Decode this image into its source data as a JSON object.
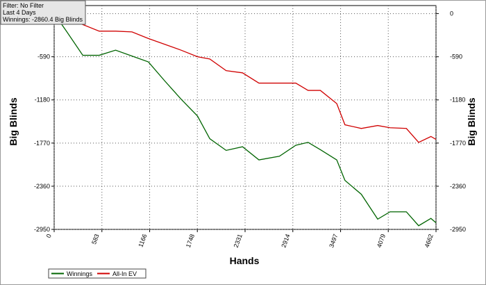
{
  "chart_data": {
    "type": "line",
    "info": [
      "Filter: No Filter",
      "Last  4 Days",
      "Winnings: -2860.4 Big Blinds"
    ],
    "y_label": "Big Blinds",
    "x_label": "Hands",
    "x": [
      0,
      150,
      350,
      550,
      750,
      950,
      1150,
      1350,
      1550,
      1750,
      1900,
      2100,
      2300,
      2500,
      2750,
      2950,
      3100,
      3250,
      3450,
      3550,
      3750,
      3950,
      4100,
      4300,
      4450,
      4600,
      4662
    ],
    "series": [
      {
        "name": "Winnings",
        "color": "#006400",
        "values": [
          0,
          -240,
          -570,
          -570,
          -500,
          -580,
          -660,
          -920,
          -1170,
          -1400,
          -1710,
          -1870,
          -1820,
          -2000,
          -1950,
          -1800,
          -1760,
          -1860,
          -2000,
          -2280,
          -2470,
          -2810,
          -2710,
          -2710,
          -2900,
          -2800,
          -2860
        ]
      },
      {
        "name": "All-In EV",
        "color": "#d00000",
        "values": [
          0,
          -60,
          -150,
          -240,
          -240,
          -250,
          -340,
          -420,
          -500,
          -590,
          -620,
          -780,
          -810,
          -950,
          -950,
          -950,
          -1050,
          -1050,
          -1230,
          -1520,
          -1570,
          -1530,
          -1560,
          -1570,
          -1760,
          -1680,
          -1720
        ]
      }
    ],
    "xlim": [
      0,
      4662
    ],
    "xticks": [
      0,
      583,
      1166,
      1748,
      2331,
      2914,
      3497,
      4079,
      4662
    ],
    "ylim": [
      -2950,
      110
    ],
    "yticks": [
      0,
      -590,
      -1180,
      -1770,
      -2360,
      -2950
    ],
    "grid": true
  }
}
